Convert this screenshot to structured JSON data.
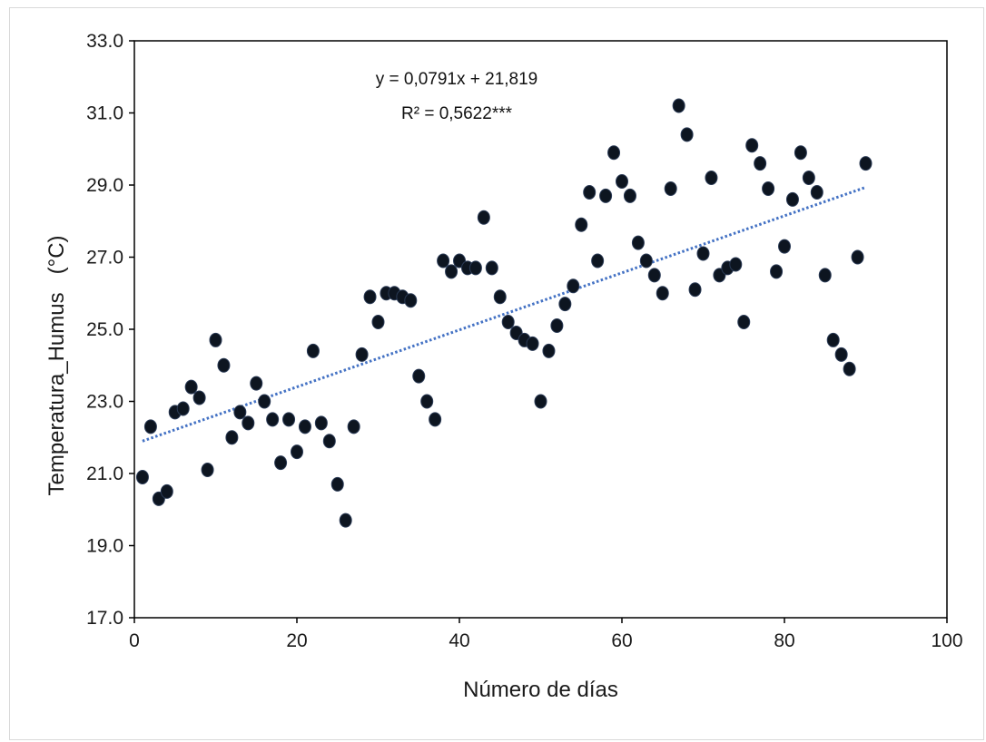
{
  "chart_data": {
    "type": "scatter",
    "xlabel": "Número de días",
    "ylabel": "Temperatura_Humus   (°C)",
    "xlim": [
      0,
      100
    ],
    "ylim": [
      17.0,
      33.0
    ],
    "xticks": [
      "0",
      "20",
      "40",
      "60",
      "80",
      "100"
    ],
    "yticks": [
      "17.0",
      "19.0",
      "21.0",
      "23.0",
      "25.0",
      "27.0",
      "29.0",
      "31.0",
      "33.0"
    ],
    "grid": false,
    "legend": "none",
    "equation": "y = 0,0791x + 21,819",
    "r_squared": "R² = 0,5622***",
    "trendline": {
      "slope": 0.0791,
      "intercept": 21.819,
      "x_range": [
        1,
        90
      ],
      "style": "dotted",
      "color": "#4472c4"
    },
    "marker_color": "#0d1520",
    "series": [
      {
        "x": [
          1,
          2,
          3,
          4,
          5,
          6,
          7,
          8,
          9,
          10,
          11,
          12,
          13,
          14,
          15,
          16,
          17,
          18,
          19,
          20,
          21,
          22,
          23,
          24,
          25,
          26,
          27,
          28,
          29,
          30,
          31,
          32,
          33,
          34,
          35,
          36,
          37,
          38,
          39,
          40,
          41,
          42,
          43,
          44,
          45,
          46,
          47,
          48,
          49,
          50,
          51,
          52,
          53,
          54,
          55,
          56,
          57,
          58,
          59,
          60,
          61,
          62,
          63,
          64,
          65,
          66,
          67,
          68,
          69,
          70,
          71,
          72,
          73,
          74,
          75,
          76,
          77,
          78,
          79,
          80,
          81,
          82,
          83,
          84,
          85,
          86,
          87,
          88,
          89,
          90
        ],
        "y": [
          20.9,
          22.3,
          20.3,
          20.5,
          22.7,
          22.8,
          23.4,
          23.1,
          21.1,
          24.7,
          24.0,
          22.0,
          22.7,
          22.4,
          23.5,
          23.0,
          22.5,
          21.3,
          22.5,
          21.6,
          22.3,
          24.4,
          22.4,
          21.9,
          20.7,
          19.7,
          22.3,
          24.3,
          25.9,
          25.2,
          26.0,
          26.0,
          25.9,
          25.8,
          23.7,
          23.0,
          22.5,
          26.9,
          26.6,
          26.9,
          26.7,
          26.7,
          28.1,
          26.7,
          25.9,
          25.2,
          24.9,
          24.7,
          24.6,
          23.0,
          24.4,
          25.1,
          25.7,
          26.2,
          27.9,
          28.8,
          26.9,
          28.7,
          29.9,
          29.1,
          28.7,
          27.4,
          26.9,
          26.5,
          26.0,
          28.9,
          31.2,
          30.4,
          26.1,
          27.1,
          29.2,
          26.5,
          26.7,
          26.8,
          25.2,
          30.1,
          29.6,
          28.9,
          26.6,
          27.3,
          28.6,
          29.9,
          29.2,
          28.8,
          26.5,
          24.7,
          24.3,
          23.9,
          27.0,
          29.6
        ]
      }
    ]
  }
}
